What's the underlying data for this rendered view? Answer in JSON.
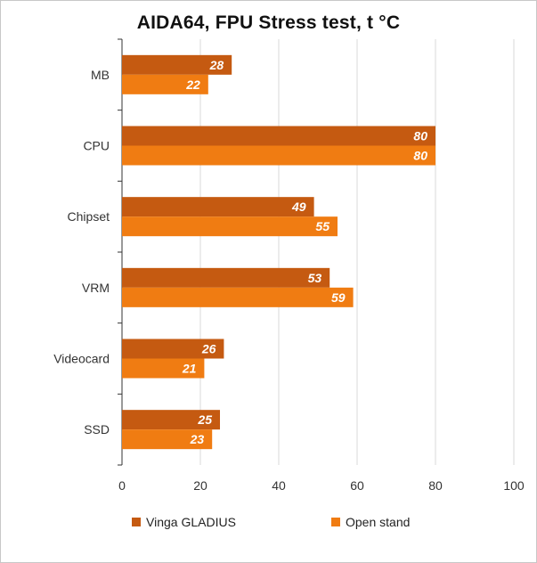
{
  "chart_data": {
    "type": "bar",
    "orientation": "horizontal",
    "title": "AIDA64, FPU Stress test, t °C",
    "categories": [
      "MB",
      "CPU",
      "Chipset",
      "VRM",
      "Videocard",
      "SSD"
    ],
    "series": [
      {
        "name": "Vinga GLADIUS",
        "color": "#c55a11",
        "values": [
          28,
          80,
          49,
          53,
          26,
          25
        ]
      },
      {
        "name": "Open stand",
        "color": "#f07c12",
        "values": [
          22,
          80,
          55,
          59,
          21,
          23
        ]
      }
    ],
    "xlim": [
      0,
      100
    ],
    "xticks": [
      "0",
      "20",
      "40",
      "60",
      "80",
      "100"
    ],
    "grid": true,
    "legend_position": "bottom"
  }
}
